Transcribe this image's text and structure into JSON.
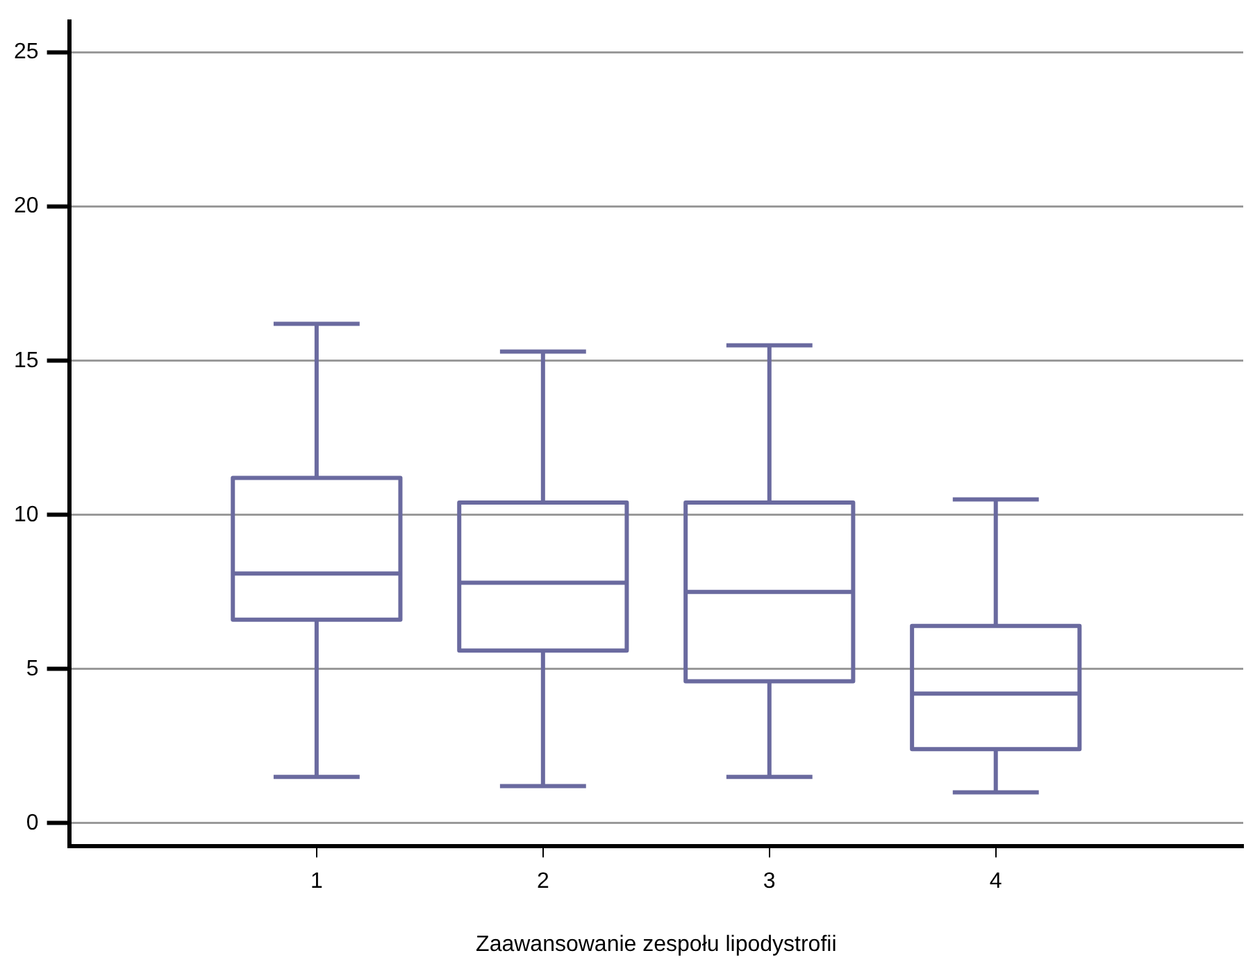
{
  "chart_data": {
    "type": "box",
    "xlabel": "Zaawansowanie zespołu lipodystrofii",
    "categories": [
      "1",
      "2",
      "3",
      "4"
    ],
    "boxes": [
      {
        "low": 1.5,
        "q1": 6.6,
        "median": 8.1,
        "q3": 11.2,
        "high": 16.2
      },
      {
        "low": 1.2,
        "q1": 5.6,
        "median": 7.8,
        "q3": 10.4,
        "high": 15.3
      },
      {
        "low": 1.5,
        "q1": 4.6,
        "median": 7.5,
        "q3": 10.4,
        "high": 15.5
      },
      {
        "low": 1.0,
        "q1": 2.4,
        "median": 4.2,
        "q3": 6.4,
        "high": 10.5
      }
    ],
    "color": "#6a6a9f",
    "ylim": [
      -0.75,
      26
    ],
    "yticks": [
      0,
      5,
      10,
      15,
      20,
      25
    ],
    "grid": "y"
  }
}
